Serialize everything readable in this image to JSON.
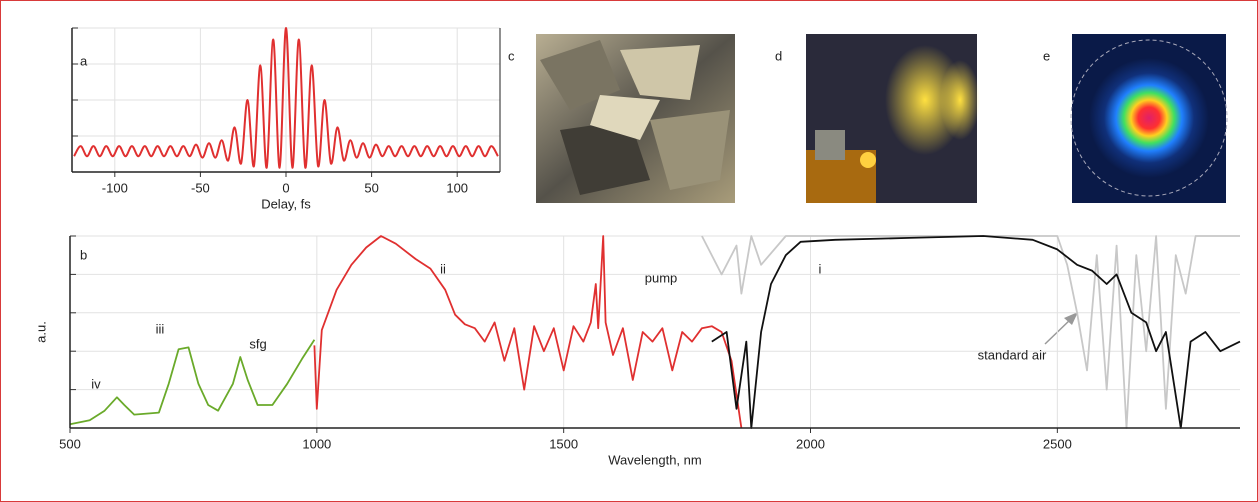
{
  "chart_data": [
    {
      "type": "line",
      "panel_label": "a",
      "xlabel": "Delay, fs",
      "xlim": [
        -125,
        125
      ],
      "xticks": [
        -100,
        -50,
        0,
        50,
        100
      ],
      "ylim": [
        0,
        1
      ],
      "yticks": [
        0,
        0.25,
        0.5,
        0.75,
        1
      ],
      "grid": true,
      "series": [
        {
          "color": "#e03030",
          "x": [
            -123.75,
            -120,
            -116.25,
            -112.5,
            -108.75,
            -105,
            -101.25,
            -97.5,
            -93.75,
            -90,
            -86.25,
            -82.5,
            -78.75,
            -75,
            -71.25,
            -67.5,
            -63.75,
            -60,
            -56.25,
            -52.5,
            -48.75,
            -45,
            -41.25,
            -37.5,
            -33.75,
            -30,
            -26.25,
            -22.5,
            -18.75,
            -15,
            -11.25,
            -7.5,
            -3.75,
            0,
            3.75,
            7.5,
            11.25,
            15,
            18.75,
            22.5,
            26.25,
            30,
            33.75,
            37.5,
            41.25,
            45,
            48.75,
            52.5,
            56.25,
            60,
            63.75,
            67.5,
            71.25,
            75,
            78.75,
            82.5,
            86.25,
            90,
            93.75,
            97.5,
            101.25,
            105,
            108.75,
            112.5,
            116.25,
            120,
            123.75
          ],
          "values": [
            0.11,
            0.18,
            0.11,
            0.18,
            0.11,
            0.18,
            0.11,
            0.18,
            0.11,
            0.18,
            0.11,
            0.18,
            0.11,
            0.18,
            0.11,
            0.18,
            0.11,
            0.18,
            0.11,
            0.19,
            0.1,
            0.2,
            0.1,
            0.22,
            0.08,
            0.31,
            0.06,
            0.5,
            0.04,
            0.74,
            0.03,
            0.92,
            0.03,
            1.0,
            0.03,
            0.92,
            0.03,
            0.74,
            0.04,
            0.5,
            0.06,
            0.31,
            0.08,
            0.22,
            0.1,
            0.2,
            0.1,
            0.19,
            0.11,
            0.18,
            0.11,
            0.18,
            0.11,
            0.18,
            0.11,
            0.18,
            0.11,
            0.18,
            0.11,
            0.18,
            0.11,
            0.18,
            0.11,
            0.18,
            0.11,
            0.18,
            0.11
          ]
        }
      ]
    },
    {
      "type": "line",
      "panel_label": "b",
      "xlabel": "Wavelength, nm",
      "ylabel": "a.u.",
      "xlim": [
        500,
        2870
      ],
      "xticks": [
        500,
        1000,
        1500,
        2000,
        2500
      ],
      "ylim": [
        0,
        1
      ],
      "yticks": [
        0,
        0.2,
        0.4,
        0.6,
        0.8,
        1
      ],
      "grid": true,
      "series": [
        {
          "color": "#c8c8c8",
          "x": [
            1780,
            1820,
            1850,
            1860,
            1880,
            1900,
            1950,
            2500,
            2520,
            2540,
            2560,
            2580,
            2600,
            2620,
            2640,
            2660,
            2680,
            2700,
            2720,
            2740,
            2760,
            2780,
            2870
          ],
          "values": [
            1.0,
            0.8,
            0.95,
            0.7,
            1.0,
            0.85,
            1.0,
            1.0,
            0.85,
            0.6,
            0.3,
            0.9,
            0.2,
            0.95,
            0.0,
            0.9,
            0.4,
            1.0,
            0.1,
            0.9,
            0.7,
            1.0,
            1.0
          ]
        },
        {
          "color": "#6aaa2a",
          "x": [
            500,
            540,
            570,
            595,
            610,
            630,
            680,
            700,
            720,
            740,
            760,
            780,
            800,
            830,
            845,
            860,
            880,
            910,
            940,
            970,
            995
          ],
          "values": [
            0.02,
            0.04,
            0.09,
            0.16,
            0.12,
            0.07,
            0.08,
            0.23,
            0.41,
            0.42,
            0.23,
            0.12,
            0.09,
            0.23,
            0.37,
            0.25,
            0.12,
            0.12,
            0.23,
            0.36,
            0.46
          ]
        },
        {
          "color": "#e03030",
          "x": [
            995,
            1000,
            1010,
            1040,
            1070,
            1100,
            1130,
            1160,
            1200,
            1230,
            1260,
            1280,
            1300,
            1320,
            1340,
            1360,
            1380,
            1400,
            1420,
            1440,
            1460,
            1480,
            1500,
            1520,
            1540,
            1555,
            1565,
            1570,
            1580,
            1585,
            1600,
            1620,
            1640,
            1660,
            1680,
            1700,
            1720,
            1740,
            1760,
            1780,
            1800,
            1820,
            1840,
            1860
          ],
          "values": [
            0.43,
            0.1,
            0.51,
            0.72,
            0.85,
            0.94,
            1.0,
            0.96,
            0.88,
            0.83,
            0.72,
            0.59,
            0.54,
            0.52,
            0.45,
            0.55,
            0.35,
            0.52,
            0.2,
            0.53,
            0.4,
            0.52,
            0.3,
            0.53,
            0.45,
            0.55,
            0.75,
            0.52,
            1.0,
            0.55,
            0.38,
            0.52,
            0.25,
            0.5,
            0.45,
            0.52,
            0.3,
            0.5,
            0.45,
            0.52,
            0.53,
            0.5,
            0.35,
            0.0
          ]
        },
        {
          "color": "#111111",
          "x": [
            1800,
            1830,
            1850,
            1870,
            1880,
            1900,
            1920,
            1950,
            1980,
            2050,
            2200,
            2350,
            2450,
            2500,
            2540,
            2570,
            2600,
            2620,
            2650,
            2680,
            2700,
            2720,
            2750,
            2770,
            2800,
            2830,
            2870
          ],
          "values": [
            0.45,
            0.5,
            0.1,
            0.45,
            0.0,
            0.5,
            0.75,
            0.9,
            0.97,
            0.98,
            0.99,
            1.0,
            0.98,
            0.93,
            0.85,
            0.82,
            0.75,
            0.8,
            0.6,
            0.55,
            0.4,
            0.5,
            0.0,
            0.45,
            0.5,
            0.4,
            0.45
          ]
        }
      ],
      "annotations": [
        "iv",
        "iii",
        "sfg",
        "ii",
        "pump",
        "i",
        "standard air"
      ]
    }
  ],
  "images": [
    {
      "label": "c"
    },
    {
      "label": "d"
    },
    {
      "label": "e"
    }
  ]
}
